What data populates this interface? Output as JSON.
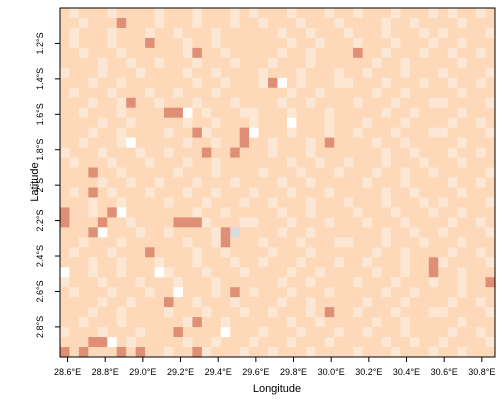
{
  "chart_data": {
    "type": "heatmap",
    "xlabel": "Longitude",
    "ylabel": "Latitude",
    "xlim": [
      28.56,
      30.87
    ],
    "ylim": [
      -2.97,
      -1.0
    ],
    "xticks": [
      {
        "value": 28.6,
        "label": "28.6°E"
      },
      {
        "value": 28.8,
        "label": "28.8°E"
      },
      {
        "value": 29.0,
        "label": "29.0°E"
      },
      {
        "value": 29.2,
        "label": "29.2°E"
      },
      {
        "value": 29.4,
        "label": "29.4°E"
      },
      {
        "value": 29.6,
        "label": "29.6°E"
      },
      {
        "value": 29.8,
        "label": "29.8°E"
      },
      {
        "value": 30.0,
        "label": "30.0°E"
      },
      {
        "value": 30.2,
        "label": "30.2°E"
      },
      {
        "value": 30.4,
        "label": "30.4°E"
      },
      {
        "value": 30.6,
        "label": "30.6°E"
      },
      {
        "value": 30.8,
        "label": "30.8°E"
      }
    ],
    "yticks": [
      {
        "value": -1.2,
        "label": "1.2°S"
      },
      {
        "value": -1.4,
        "label": "1.4°S"
      },
      {
        "value": -1.6,
        "label": "1.6°S"
      },
      {
        "value": -1.8,
        "label": "1.8°S"
      },
      {
        "value": -2.0,
        "label": "2°S"
      },
      {
        "value": -2.2,
        "label": "2.2°S"
      },
      {
        "value": -2.4,
        "label": "2.4°S"
      },
      {
        "value": -2.6,
        "label": "2.6°S"
      },
      {
        "value": -2.8,
        "label": "2.8°S"
      }
    ],
    "colors": [
      "#fbe7d3",
      "#fdd9b9",
      "#df8f76",
      "#ffffff",
      "#d9d9de"
    ],
    "rows": [
      "1011101111011101110101110111011011101110101101",
      "1101112111011101110110111011101111011011110111",
      "1011101110110111011111101101110111011101011110",
      "1011101112111011011111110110111011101110110111",
      "1101110111111021101111101101111211011101101101",
      "1111011011011101110111011101111110110111110111",
      "0111011101111011011110111011101101110111011110",
      "1110110111111101101110231011100111011101101101",
      "1011101110110111011111110110111110110111110111",
      "1110110211011101110111101101111011101110011110",
      "1101110111122310111001110111011111011011110111",
      "1111011011111011011101113111011101110111101101",
      "1110110111101120111231110111011011101110011110",
      "1101110311111011011211011101211110110111110111",
      "0111011101101112112111011101111111011011101101",
      "1011101110111011011111110110110111011101110111",
      "1112110111110111011110111011101110110110111110",
      "1111011011011101110111101101111101110111101101",
      "1012101110111011011101110111011111011011110111",
      "1110110111101110111011011101110111011101011110",
      "2110123111111101101111101101111011101110110111",
      "2111211011112220111001110111011101110111101101",
      "1112311101101111024111101101111111011011011110",
      "1101110111111011021110111011100111011101110111",
      "1011101112111101101111011101111110110111101101",
      "1110110111011101110110111011101101110112011110",
      "3110110111301110111011110110111110110112110111",
      "0111011101110111011111101101111011101110110112",
      "1011101110113111012101110111011111011011110111",
      "1111011011121101110111101101111101110111101101",
      "1110110111101110111011011101211011101110011110",
      "1101110111111021101111110110111110110111110111",
      "0111011101112111131110111011101101110111101101",
      "1112231011111011011101110111011111011011011110",
      "2121112121101120111011011101111011101110110111"
    ]
  }
}
